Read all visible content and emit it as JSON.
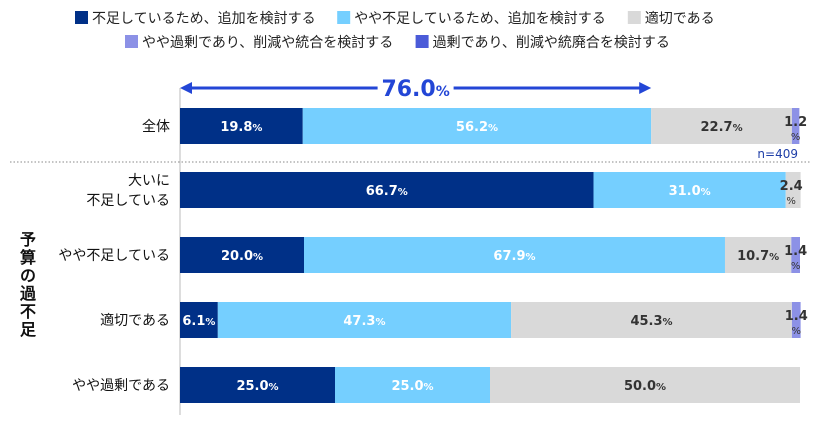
{
  "chart_data": {
    "type": "bar",
    "orientation": "horizontal-stacked-100",
    "legend": [
      {
        "name": "不足しているため、追加を検討する",
        "color": "#003087"
      },
      {
        "name": "やや不足しているため、追加を検討する",
        "color": "#75CFFF"
      },
      {
        "name": "適切である",
        "color": "#D9D9D9"
      },
      {
        "name": "やや過剰であり、削減や統合を検討する",
        "color": "#8C91E6"
      },
      {
        "name": "過剰であり、削減や統廃合を検討する",
        "color": "#4B5BD8"
      }
    ],
    "legend_position": "top",
    "y_group_label": "予算の過不足",
    "categories": [
      {
        "label": [
          "全体"
        ],
        "values": [
          19.8,
          56.2,
          22.7,
          1.2,
          0
        ],
        "labels": [
          "19.8",
          "56.2",
          "22.7",
          "1.2",
          ""
        ]
      },
      {
        "label": [
          "大いに",
          "不足している"
        ],
        "values": [
          66.7,
          31.0,
          2.4,
          0,
          0
        ],
        "labels": [
          "66.7",
          "31.0",
          "2.4",
          "",
          ""
        ]
      },
      {
        "label": [
          "やや不足している"
        ],
        "values": [
          20.0,
          67.9,
          10.7,
          1.4,
          0
        ],
        "labels": [
          "20.0",
          "67.9",
          "10.7",
          "1.4",
          ""
        ]
      },
      {
        "label": [
          "適切である"
        ],
        "values": [
          6.1,
          47.3,
          45.3,
          1.4,
          0
        ],
        "labels": [
          "6.1",
          "47.3",
          "45.3",
          "1.4",
          ""
        ]
      },
      {
        "label": [
          "やや過剰である"
        ],
        "values": [
          25.0,
          25.0,
          50.0,
          0,
          0
        ],
        "labels": [
          "25.0",
          "25.0",
          "50.0",
          "",
          ""
        ]
      }
    ],
    "percent_sign": "%",
    "annotation": {
      "text": "76.0",
      "suffix": "%",
      "span_value": 76.0,
      "color": "#2346D6"
    },
    "n_label": "n=409"
  }
}
